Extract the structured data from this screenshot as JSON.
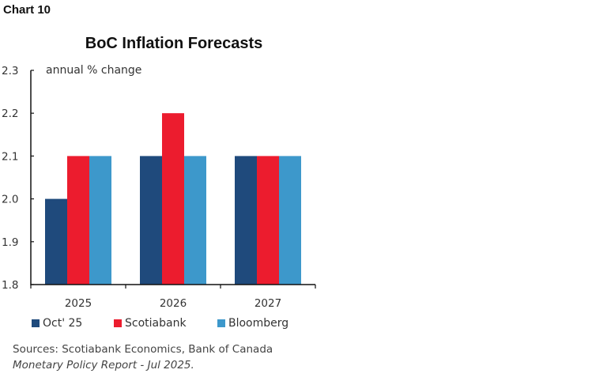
{
  "chart_label": "Chart 10",
  "chart_data": {
    "type": "bar",
    "title": "BoC Inflation Forecasts",
    "ylabel": "annual % change",
    "categories": [
      "2025",
      "2026",
      "2027"
    ],
    "series": [
      {
        "name": "Oct' 25",
        "color": "#1f4a7c",
        "values": [
          2.0,
          2.1,
          2.1
        ]
      },
      {
        "name": "Scotiabank",
        "color": "#ec1c2e",
        "values": [
          2.1,
          2.2,
          2.1
        ]
      },
      {
        "name": "Bloomberg",
        "color": "#3d98cb",
        "values": [
          2.1,
          2.1,
          2.1
        ]
      }
    ],
    "ylim": [
      1.8,
      2.3
    ],
    "yticks": [
      "1.8",
      "1.9",
      "2.0",
      "2.1",
      "2.2",
      "2.3"
    ],
    "grid": false,
    "legend_position": "bottom"
  },
  "source_line1": "Sources: Scotiabank Economics, Bank of Canada",
  "source_line2": "Monetary Policy Report - Jul 2025."
}
